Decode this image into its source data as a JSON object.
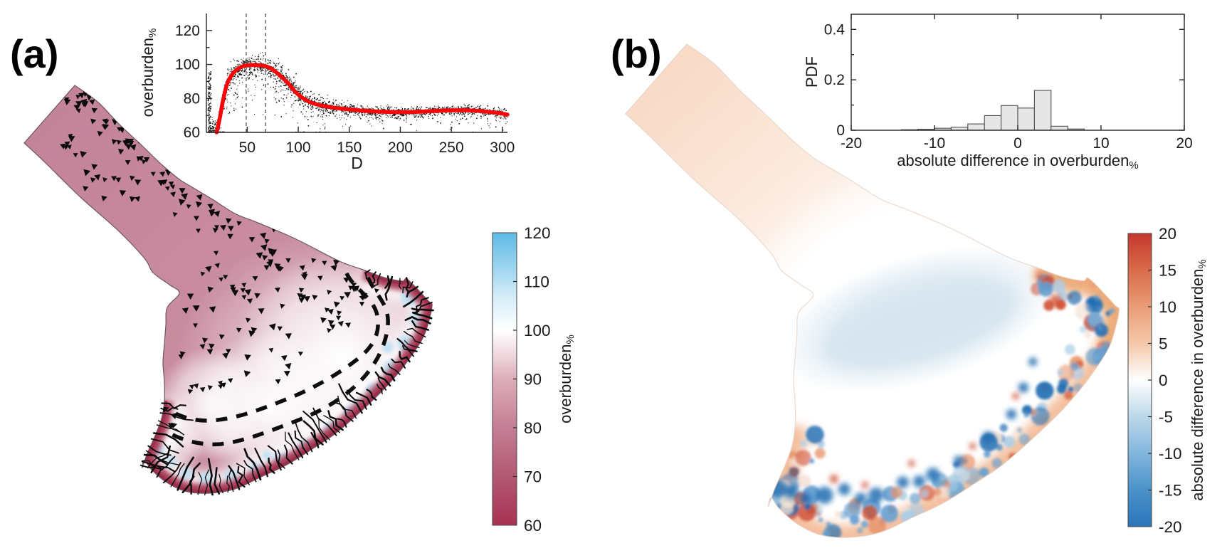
{
  "panels": {
    "a": {
      "label": "(a)",
      "scatter_inset": {
        "ylabel": "overburden",
        "ylabel_sub": "%",
        "xlabel": "D",
        "yticks": [
          "60",
          "80",
          "100",
          "120"
        ],
        "xticks": [
          "50",
          "100",
          "150",
          "200",
          "250",
          "300"
        ]
      },
      "colorbar": {
        "ticks": [
          "120",
          "110",
          "100",
          "90",
          "80",
          "70",
          "60"
        ],
        "label": "overburden",
        "label_sub": "%"
      },
      "map": "glacier surface coloured by overburden% with black triangle markers, two thick dashed arcs near the terminus, dark red rim and black crevasse traces along the margin"
    },
    "b": {
      "label": "(b)",
      "hist_inset": {
        "ylabel": "PDF",
        "xlabel": "absolute difference in overburden",
        "xlabel_sub": "%",
        "yticks": [
          "0",
          "0.2",
          "0.4"
        ],
        "xticks": [
          "-20",
          "-10",
          "0",
          "10",
          "20"
        ]
      },
      "colorbar": {
        "ticks": [
          "20",
          "15",
          "10",
          "5",
          "0",
          "-5",
          "-10",
          "-15",
          "-20"
        ],
        "label": "absolute difference in overburden",
        "label_sub": "%"
      },
      "map": "same glacier coloured by absolute difference in overburden%: pale peach upper arm, pale blue interior band, orange rim band and noisy blue/red speckles along the terminus margin"
    }
  },
  "chart_data": [
    {
      "id": "panel-a-scatter",
      "type": "scatter",
      "title": "",
      "xlabel": "D",
      "ylabel": "overburden%",
      "xlim": [
        10,
        305
      ],
      "ylim": [
        60,
        130
      ],
      "xticks": [
        50,
        100,
        150,
        200,
        250,
        300
      ],
      "yticks": [
        60,
        80,
        100,
        120
      ],
      "yticks_minor": [
        70,
        90,
        110
      ],
      "dashed_vlines": [
        49,
        68
      ],
      "trend_color": "#fb0207",
      "trend_points": [
        [
          20,
          60
        ],
        [
          23,
          68
        ],
        [
          26,
          78
        ],
        [
          30,
          88
        ],
        [
          35,
          94
        ],
        [
          40,
          97
        ],
        [
          46,
          99
        ],
        [
          52,
          99.6
        ],
        [
          60,
          99.6
        ],
        [
          68,
          99
        ],
        [
          75,
          97
        ],
        [
          82,
          93.5
        ],
        [
          90,
          89
        ],
        [
          97,
          84
        ],
        [
          105,
          80
        ],
        [
          115,
          77
        ],
        [
          130,
          75
        ],
        [
          150,
          73.5
        ],
        [
          170,
          72.5
        ],
        [
          190,
          72
        ],
        [
          210,
          72
        ],
        [
          230,
          72.5
        ],
        [
          250,
          73
        ],
        [
          265,
          73
        ],
        [
          280,
          72.5
        ],
        [
          295,
          71.5
        ],
        [
          305,
          70.5
        ]
      ],
      "scatter_style": {
        "color": "#000000",
        "approx_count": 2500,
        "description": "dense cloud of small black points around the red trend line; wide spread below the line for D<130, tight band for larger D, dense column at the left axis"
      }
    },
    {
      "id": "panel-b-histogram",
      "type": "bar",
      "title": "",
      "xlabel": "absolute difference in overburden%",
      "ylabel": "PDF",
      "xlim": [
        -20,
        20
      ],
      "ylim": [
        0,
        0.46
      ],
      "xticks": [
        -20,
        -10,
        0,
        10,
        20
      ],
      "yticks": [
        0,
        0.2,
        0.4
      ],
      "yticks_minor": [
        0.1,
        0.3
      ],
      "bin_edges": [
        -14,
        -12,
        -10,
        -8,
        -6,
        -4,
        -2,
        0,
        2,
        4,
        6,
        8
      ],
      "values": [
        0.002,
        0.004,
        0.008,
        0.012,
        0.025,
        0.058,
        0.098,
        0.088,
        0.158,
        0.016,
        0.005
      ],
      "bar_fill": "#e6e6e6",
      "bar_edge": "#4d4d4d"
    },
    {
      "id": "panel-a-colorbar",
      "type": "colorbar",
      "label": "overburden%",
      "range": [
        60,
        120
      ],
      "tick_values": [
        120,
        110,
        100,
        90,
        80,
        70,
        60
      ],
      "stops": [
        [
          0,
          "#5fbae6"
        ],
        [
          0.12,
          "#9dd5f0"
        ],
        [
          0.22,
          "#d6edf8"
        ],
        [
          0.333,
          "#ffffff"
        ],
        [
          0.43,
          "#edd2d9"
        ],
        [
          0.5,
          "#ddadb9"
        ],
        [
          0.667,
          "#c47e94"
        ],
        [
          0.833,
          "#b25873"
        ],
        [
          1,
          "#a83253"
        ]
      ]
    },
    {
      "id": "panel-b-colorbar",
      "type": "colorbar",
      "label": "absolute difference in overburden%",
      "range": [
        -20,
        20
      ],
      "tick_values": [
        20,
        15,
        10,
        5,
        0,
        -5,
        -10,
        -15,
        -20
      ],
      "stops": [
        [
          0,
          "#c5372e"
        ],
        [
          0.125,
          "#d96b4a"
        ],
        [
          0.25,
          "#e99c76"
        ],
        [
          0.375,
          "#f5c8aa"
        ],
        [
          0.5,
          "#ffffff"
        ],
        [
          0.625,
          "#bcd8ea"
        ],
        [
          0.75,
          "#82b6dc"
        ],
        [
          0.875,
          "#4b92ca"
        ],
        [
          1,
          "#2b74ba"
        ]
      ]
    }
  ],
  "map_colors": {
    "a_base": "#c98da0",
    "a_base_dark": "#c07f95",
    "a_margin": "#a83a57",
    "a_margin_edge": "#992e4a",
    "a_blue_patch": "#bfe0f2",
    "a_outline": "#6e5560",
    "b_arm": "#f8d9c5",
    "b_arm_light": "#fcebe0",
    "b_blue_band": "#dce9f2",
    "b_orange_band": "#f2bd9a",
    "b_orange_band_strong": "#eca873",
    "b_deep_blue": "#1e6db2",
    "b_mid_blue": "#639fd0",
    "b_pale_blue": "#a9cde6",
    "b_orange": "#e8946a",
    "b_red": "#cf4f31",
    "b_outline": "#e6d2c6"
  }
}
